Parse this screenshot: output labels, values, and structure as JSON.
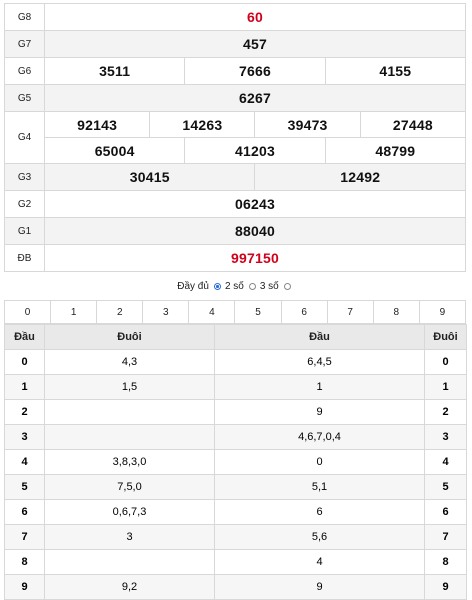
{
  "results": {
    "rows": [
      {
        "label": "G8",
        "numbers": [
          "60"
        ],
        "red": true,
        "alt": false
      },
      {
        "label": "G7",
        "numbers": [
          "457"
        ],
        "red": false,
        "alt": true
      },
      {
        "label": "G6",
        "numbers": [
          "3511",
          "7666",
          "4155"
        ],
        "red": false,
        "alt": false
      },
      {
        "label": "G5",
        "numbers": [
          "6267"
        ],
        "red": false,
        "alt": true
      },
      {
        "label": "G4",
        "numbers": [
          "92143",
          "14263",
          "39473",
          "27448",
          "65004",
          "41203",
          "48799"
        ],
        "red": false,
        "alt": false
      },
      {
        "label": "G3",
        "numbers": [
          "30415",
          "12492"
        ],
        "red": false,
        "alt": true
      },
      {
        "label": "G2",
        "numbers": [
          "06243"
        ],
        "red": false,
        "alt": false
      },
      {
        "label": "G1",
        "numbers": [
          "88040"
        ],
        "red": false,
        "alt": true
      },
      {
        "label": "ĐB",
        "numbers": [
          "997150"
        ],
        "red": true,
        "alt": false
      }
    ]
  },
  "display_options": {
    "full_label": "Đầy đủ",
    "two_digits_label": "2 số",
    "three_digits_label": "3 số",
    "selected": "2 số"
  },
  "digit_filter": [
    "0",
    "1",
    "2",
    "3",
    "4",
    "5",
    "6",
    "7",
    "8",
    "9"
  ],
  "loto_table": {
    "headers": [
      "Đầu",
      "Đuôi",
      "Đầu",
      "Đuôi"
    ],
    "rows": [
      {
        "dau": "0",
        "duoi": "4,3",
        "dau2": "6,4,5",
        "duoi2": "0"
      },
      {
        "dau": "1",
        "duoi": "1,5",
        "dau2": "1",
        "duoi2": "1"
      },
      {
        "dau": "2",
        "duoi": "",
        "dau2": "9",
        "duoi2": "2"
      },
      {
        "dau": "3",
        "duoi": "",
        "dau2": "4,6,7,0,4",
        "duoi2": "3"
      },
      {
        "dau": "4",
        "duoi": "3,8,3,0",
        "dau2": "0",
        "duoi2": "4"
      },
      {
        "dau": "5",
        "duoi": "7,5,0",
        "dau2": "5,1",
        "duoi2": "5"
      },
      {
        "dau": "6",
        "duoi": "0,6,7,3",
        "dau2": "6",
        "duoi2": "6"
      },
      {
        "dau": "7",
        "duoi": "3",
        "dau2": "5,6",
        "duoi2": "7"
      },
      {
        "dau": "8",
        "duoi": "",
        "dau2": "4",
        "duoi2": "8"
      },
      {
        "dau": "9",
        "duoi": "9,2",
        "dau2": "9",
        "duoi2": "9"
      }
    ]
  },
  "colors": {
    "accent_red": "#d0021b",
    "radio_blue": "#2a6fd6"
  }
}
